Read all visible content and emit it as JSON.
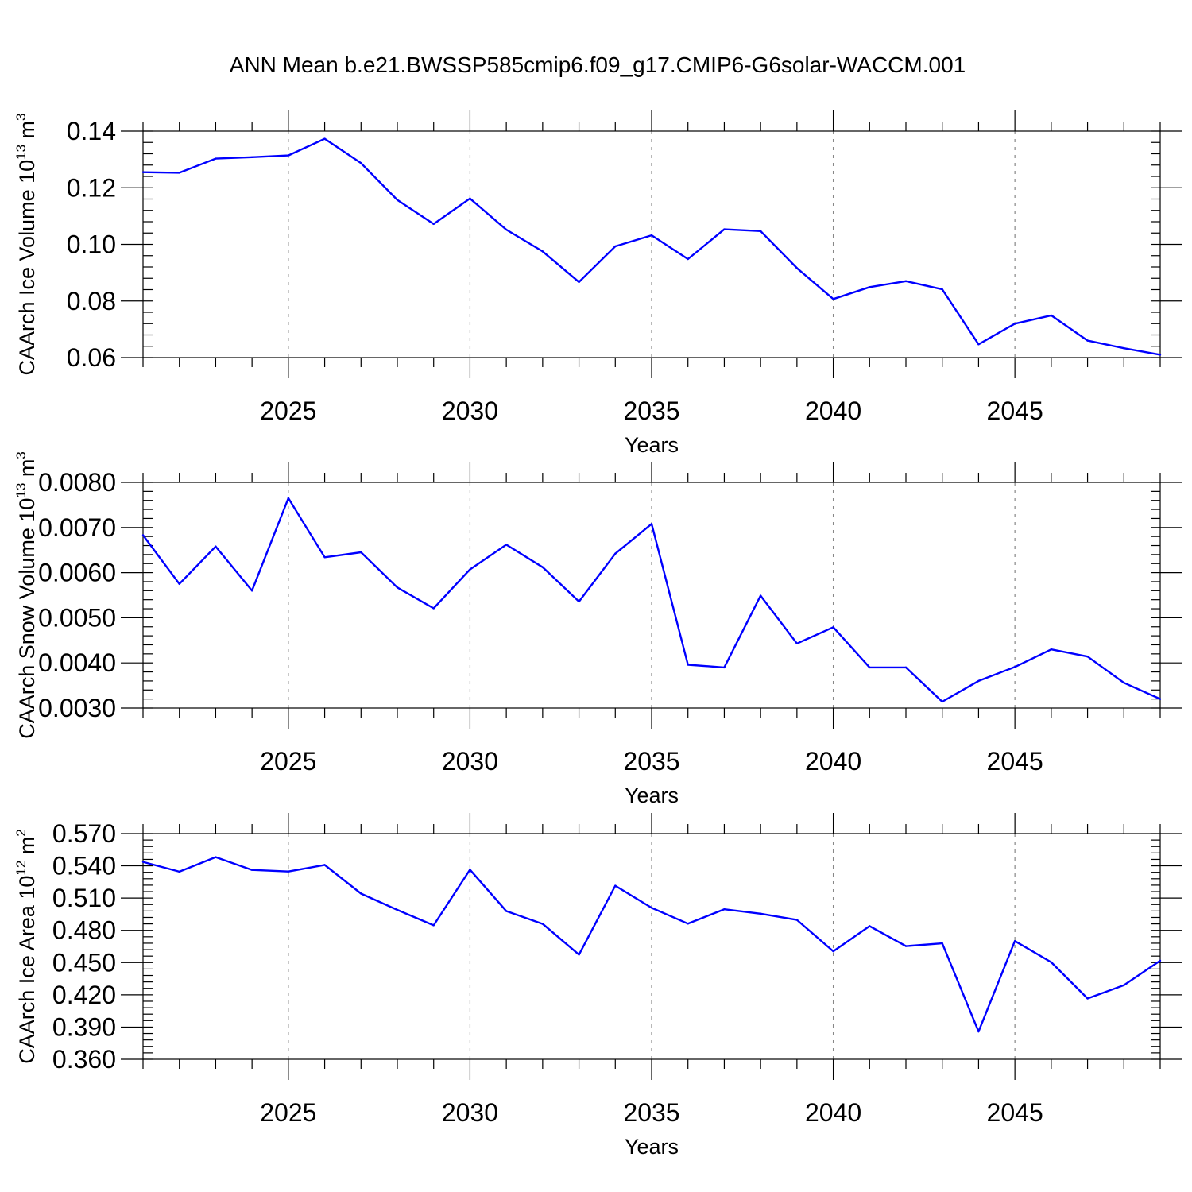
{
  "figure": {
    "title": "ANN Mean b.e21.BWSSP585cmip6.f09_g17.CMIP6-G6solar-WACCM.001"
  },
  "colors": {
    "series": "#0000ff",
    "grid": "#888888",
    "axis": "#000000"
  },
  "chart_data": [
    {
      "type": "line",
      "title": "ANN Mean b.e21.BWSSP585cmip6.f09_g17.CMIP6-G6solar-WACCM.001",
      "xlabel": "Years",
      "ylabel": "CAArch Ice Volume 10",
      "ylabel_exp": "13",
      "ylabel_unit": "m",
      "ylabel_unit_exp": "3",
      "xlim": [
        2021,
        2049
      ],
      "ylim": [
        0.06,
        0.14
      ],
      "yticks": [
        0.06,
        0.08,
        0.1,
        0.12,
        0.14
      ],
      "ytick_labels": [
        "0.06",
        "0.08",
        "0.10",
        "0.12",
        "0.14"
      ],
      "yminor_step": 0.004,
      "xticks": [
        2025,
        2030,
        2035,
        2040,
        2045
      ],
      "xtick_labels": [
        "2025",
        "2030",
        "2035",
        "2040",
        "2045"
      ],
      "x": [
        2021,
        2022,
        2023,
        2024,
        2025,
        2026,
        2027,
        2028,
        2029,
        2030,
        2031,
        2032,
        2033,
        2034,
        2035,
        2036,
        2037,
        2038,
        2039,
        2040,
        2041,
        2042,
        2043,
        2044,
        2045,
        2046,
        2047,
        2048,
        2049
      ],
      "values": [
        0.1255,
        0.1253,
        0.1303,
        0.1308,
        0.1314,
        0.1373,
        0.1287,
        0.1157,
        0.1072,
        0.1162,
        0.1052,
        0.0975,
        0.0867,
        0.0993,
        0.1032,
        0.0948,
        0.1053,
        0.1047,
        0.0916,
        0.0807,
        0.0849,
        0.087,
        0.0841,
        0.0647,
        0.072,
        0.0749,
        0.066,
        0.0633,
        0.061
      ]
    },
    {
      "type": "line",
      "xlabel": "Years",
      "ylabel": "CAArch Snow Volume 10",
      "ylabel_exp": "13",
      "ylabel_unit": "m",
      "ylabel_unit_exp": "3",
      "xlim": [
        2021,
        2049
      ],
      "ylim": [
        0.003,
        0.008
      ],
      "yticks": [
        0.003,
        0.004,
        0.005,
        0.006,
        0.007,
        0.008
      ],
      "ytick_labels": [
        "0.0030",
        "0.0040",
        "0.0050",
        "0.0060",
        "0.0070",
        "0.0080"
      ],
      "yminor_step": 0.0002,
      "xticks": [
        2025,
        2030,
        2035,
        2040,
        2045
      ],
      "xtick_labels": [
        "2025",
        "2030",
        "2035",
        "2040",
        "2045"
      ],
      "x": [
        2021,
        2022,
        2023,
        2024,
        2025,
        2026,
        2027,
        2028,
        2029,
        2030,
        2031,
        2032,
        2033,
        2034,
        2035,
        2036,
        2037,
        2038,
        2039,
        2040,
        2041,
        2042,
        2043,
        2044,
        2045,
        2046,
        2047,
        2048,
        2049
      ],
      "values": [
        0.00683,
        0.00575,
        0.00658,
        0.0056,
        0.00765,
        0.00634,
        0.00645,
        0.00567,
        0.00521,
        0.00607,
        0.00662,
        0.00612,
        0.00536,
        0.00642,
        0.00708,
        0.00396,
        0.0039,
        0.00549,
        0.00443,
        0.00479,
        0.0039,
        0.0039,
        0.00314,
        0.0036,
        0.00391,
        0.0043,
        0.00414,
        0.00356,
        0.0032
      ]
    },
    {
      "type": "line",
      "xlabel": "Years",
      "ylabel": "CAArch Ice Area 10",
      "ylabel_exp": "12",
      "ylabel_unit": "m",
      "ylabel_unit_exp": "2",
      "xlim": [
        2021,
        2049
      ],
      "ylim": [
        0.36,
        0.57
      ],
      "yticks": [
        0.36,
        0.39,
        0.42,
        0.45,
        0.48,
        0.51,
        0.54,
        0.57
      ],
      "ytick_labels": [
        "0.360",
        "0.390",
        "0.420",
        "0.450",
        "0.480",
        "0.510",
        "0.540",
        "0.570"
      ],
      "yminor_step": 0.006,
      "xticks": [
        2025,
        2030,
        2035,
        2040,
        2045
      ],
      "xtick_labels": [
        "2025",
        "2030",
        "2035",
        "2040",
        "2045"
      ],
      "x": [
        2021,
        2022,
        2023,
        2024,
        2025,
        2026,
        2027,
        2028,
        2029,
        2030,
        2031,
        2032,
        2033,
        2034,
        2035,
        2036,
        2037,
        2038,
        2039,
        2040,
        2041,
        2042,
        2043,
        2044,
        2045,
        2046,
        2047,
        2048,
        2049
      ],
      "values": [
        0.5437,
        0.5346,
        0.5481,
        0.5362,
        0.5347,
        0.5409,
        0.5142,
        0.499,
        0.4847,
        0.5364,
        0.4979,
        0.486,
        0.4574,
        0.5215,
        0.5009,
        0.4862,
        0.4996,
        0.4955,
        0.4897,
        0.4605,
        0.4839,
        0.4653,
        0.4679,
        0.3858,
        0.47,
        0.4503,
        0.4166,
        0.4289,
        0.4518
      ]
    }
  ]
}
